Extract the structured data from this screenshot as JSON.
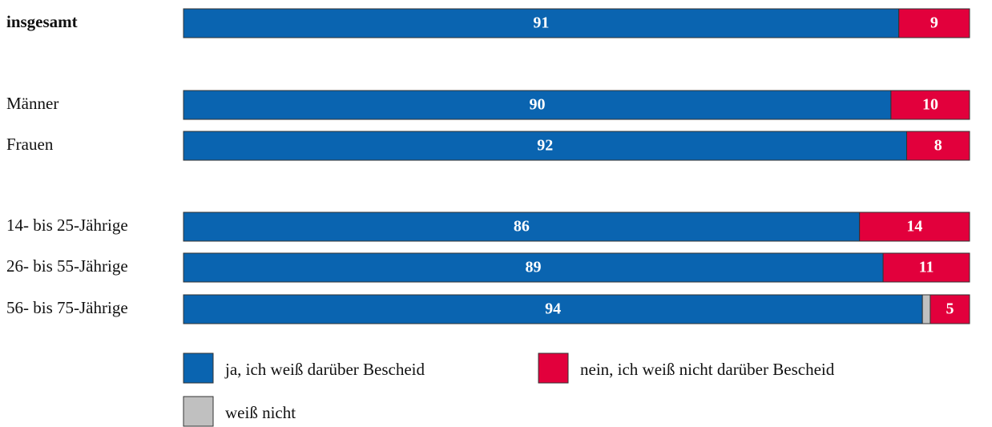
{
  "chart_data": {
    "type": "stacked-bar",
    "orientation": "horizontal",
    "categories": [
      "insgesamt",
      "Männer",
      "Frauen",
      "14- bis 25-Jährige",
      "26- bis 55-Jährige",
      "56- bis 75-Jährige"
    ],
    "series": [
      {
        "name": "ja, ich weiß darüber Bescheid",
        "color": "#0a64b0",
        "values": [
          91,
          90,
          92,
          86,
          89,
          94
        ]
      },
      {
        "name": "weiß nicht",
        "color": "#c0c0c0",
        "values": [
          0,
          0,
          0,
          0,
          0,
          1
        ]
      },
      {
        "name": "nein, ich weiß nicht darüber Bescheid",
        "color": "#e2003c",
        "values": [
          9,
          10,
          8,
          14,
          11,
          5
        ]
      }
    ],
    "xlim": [
      0,
      100
    ]
  }
}
